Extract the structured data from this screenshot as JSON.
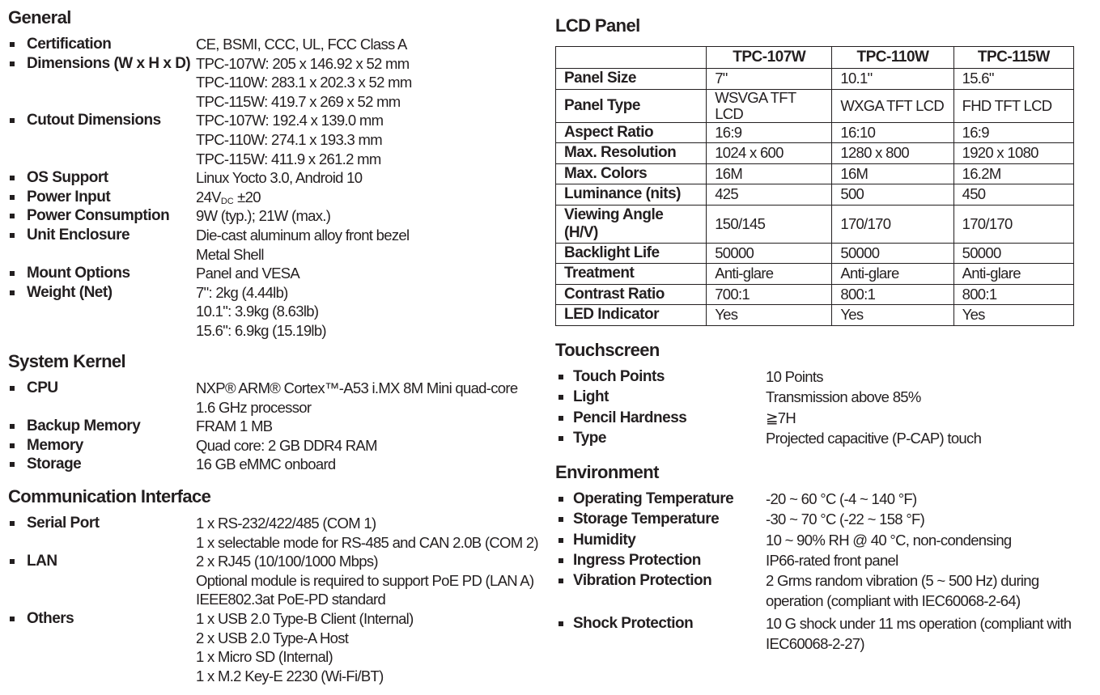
{
  "left": [
    {
      "title": "General",
      "items": [
        {
          "label": "Certification",
          "lines": [
            "CE, BSMI, CCC, UL, FCC Class A"
          ]
        },
        {
          "label": "Dimensions (W x H x D)",
          "lines": [
            "TPC-107W: 205 x 146.92 x 52 mm",
            "TPC-110W: 283.1 x 202.3 x 52 mm",
            "TPC-115W: 419.7 x 269 x 52 mm"
          ]
        },
        {
          "label": "Cutout Dimensions",
          "lines": [
            "TPC-107W: 192.4 x 139.0 mm",
            "TPC-110W: 274.1 x 193.3 mm",
            "TPC-115W: 411.9 x 261.2 mm"
          ]
        },
        {
          "label": "OS Support",
          "lines": [
            "Linux Yocto 3.0, Android 10"
          ]
        },
        {
          "label": "Power Input",
          "lines": [
            {
              "text": "24V",
              "sub": "DC",
              "tail": " ±20"
            }
          ]
        },
        {
          "label": "Power Consumption",
          "lines": [
            "9W (typ.); 21W (max.)"
          ]
        },
        {
          "label": "Unit Enclosure",
          "lines": [
            "Die-cast aluminum alloy front bezel",
            "Metal Shell"
          ]
        },
        {
          "label": "Mount Options",
          "lines": [
            "Panel and VESA"
          ]
        },
        {
          "label": "Weight (Net)",
          "lines": [
            "7\": 2kg (4.44lb)",
            "10.1\": 3.9kg (8.63lb)",
            "15.6\": 6.9kg (15.19lb)"
          ]
        }
      ]
    },
    {
      "title": "System Kernel",
      "items": [
        {
          "label": "CPU",
          "lines": [
            "NXP® ARM® Cortex™-A53 i.MX 8M Mini quad-core",
            "1.6 GHz processor"
          ]
        },
        {
          "label": "Backup Memory",
          "lines": [
            "FRAM 1 MB"
          ]
        },
        {
          "label": "Memory",
          "lines": [
            "Quad core: 2 GB DDR4 RAM"
          ]
        },
        {
          "label": "Storage",
          "lines": [
            "16 GB eMMC onboard"
          ]
        }
      ]
    },
    {
      "title": "Communication Interface",
      "items": [
        {
          "label": "Serial Port",
          "lines": [
            "1 x RS-232/422/485 (COM 1)",
            "1 x selectable mode for RS-485 and CAN 2.0B (COM 2)"
          ]
        },
        {
          "label": "LAN",
          "lines": [
            "2 x RJ45 (10/100/1000 Mbps)",
            "Optional module is required to support PoE PD (LAN A)",
            "IEEE802.3at PoE-PD standard"
          ]
        },
        {
          "label": "Others",
          "lines": [
            "1 x USB 2.0 Type-B Client (Internal)",
            "2 x USB 2.0 Type-A Host",
            "1 x Micro SD (Internal)",
            "1 x M.2 Key-E 2230 (Wi-Fi/BT)"
          ]
        }
      ]
    }
  ],
  "lcd": {
    "title": "LCD Panel",
    "columns": [
      "",
      "TPC-107W",
      "TPC-110W",
      "TPC-115W"
    ],
    "rows": [
      [
        "Panel Size",
        "7\"",
        "10.1\"",
        "15.6\""
      ],
      [
        "Panel Type",
        "WSVGA TFT LCD",
        "WXGA TFT LCD",
        "FHD TFT LCD"
      ],
      [
        "Aspect Ratio",
        "16:9",
        "16:10",
        "16:9"
      ],
      [
        "Max. Resolution",
        "1024 x 600",
        "1280 x 800",
        "1920 x 1080"
      ],
      [
        "Max. Colors",
        "16M",
        "16M",
        "16.2M"
      ],
      [
        "Luminance (nits)",
        "425",
        "500",
        "450"
      ],
      [
        "Viewing Angle (H/V)",
        "150/145",
        "170/170",
        "170/170"
      ],
      [
        "Backlight Life",
        "50000",
        "50000",
        "50000"
      ],
      [
        "Treatment",
        "Anti-glare",
        "Anti-glare",
        "Anti-glare"
      ],
      [
        "Contrast Ratio",
        "700:1",
        "800:1",
        "800:1"
      ],
      [
        "LED Indicator",
        "Yes",
        "Yes",
        "Yes"
      ]
    ]
  },
  "touchscreen": {
    "title": "Touchscreen",
    "items": [
      {
        "label": "Touch Points",
        "lines": [
          "10 Points"
        ]
      },
      {
        "label": "Light",
        "lines": [
          "Transmission above 85%"
        ]
      },
      {
        "label": "Pencil Hardness",
        "lines": [
          "≧7H"
        ]
      },
      {
        "label": "Type",
        "lines": [
          "Projected capacitive (P-CAP) touch"
        ]
      }
    ]
  },
  "environment": {
    "title": "Environment",
    "items": [
      {
        "label": "Operating Temperature",
        "lines": [
          "-20 ~ 60 °C (-4 ~ 140 °F)"
        ]
      },
      {
        "label": "Storage Temperature",
        "lines": [
          "-30 ~ 70 °C (-22 ~ 158 °F)"
        ]
      },
      {
        "label": "Humidity",
        "lines": [
          "10 ~ 90% RH @ 40 °C, non-condensing"
        ]
      },
      {
        "label": "Ingress Protection",
        "lines": [
          "IP66-rated front panel"
        ]
      },
      {
        "label": "Vibration Protection",
        "lines": [
          "2 Grms random vibration (5 ~ 500 Hz) during",
          "operation (compliant with IEC60068-2-64)"
        ]
      },
      {
        "label": "Shock Protection",
        "lines": [
          "10 G shock under 11 ms operation (compliant with",
          "IEC60068-2-27)"
        ]
      }
    ]
  }
}
